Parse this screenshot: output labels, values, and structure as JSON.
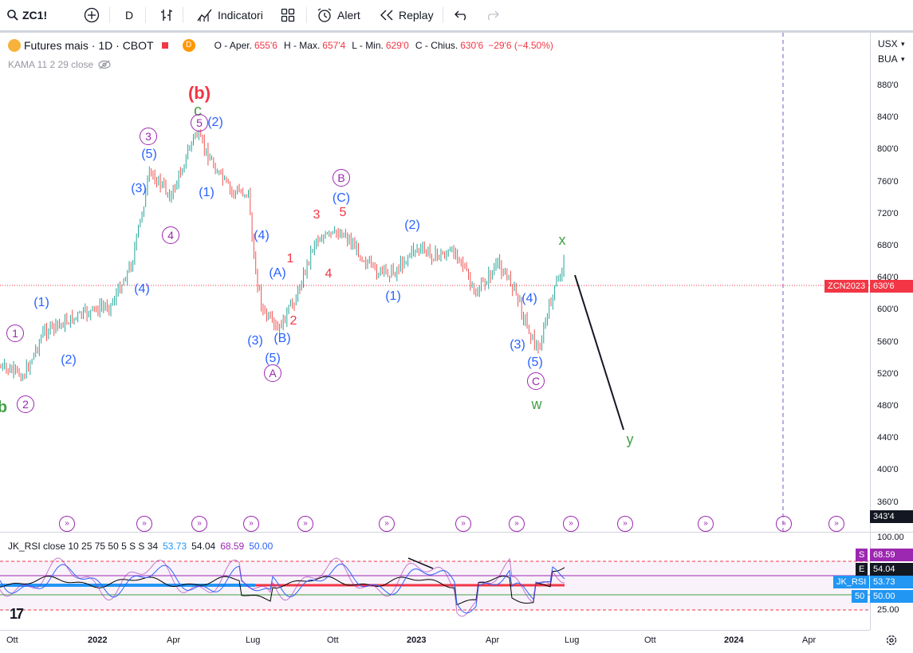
{
  "toolbar": {
    "symbol": "ZC1!",
    "interval": "D",
    "indicators_label": "Indicatori",
    "alert_label": "Alert",
    "replay_label": "Replay"
  },
  "legend": {
    "title": "Futures mais · 1D · CBOT",
    "badge": "D",
    "open_label": "O - Aper.",
    "open": "655'6",
    "high_label": "H - Max.",
    "high": "657'4",
    "low_label": "L - Min.",
    "low": "629'0",
    "close_label": "C - Chius.",
    "close": "630'6",
    "change": "−29'6 (−4.50%)"
  },
  "indicator": {
    "kama": "KAMA 11 2 29 close"
  },
  "rsi_legend": {
    "name": "JK_RSI close 10 25 75 50 5 S S 34",
    "v1": "53.73",
    "v2": "54.04",
    "v3": "68.59",
    "v4": "50.00"
  },
  "axis": {
    "currency": "USX",
    "unit": "BUA",
    "price_ticks": [
      "880'0",
      "840'0",
      "800'0",
      "760'0",
      "720'0",
      "680'0",
      "640'0",
      "600'0",
      "560'0",
      "520'0",
      "480'0",
      "440'0",
      "400'0",
      "360'0"
    ],
    "rsi_ticks": [
      "100.00",
      "25.00"
    ],
    "time_ticks": [
      "Ott",
      "2022",
      "Apr",
      "Lug",
      "Ott",
      "2023",
      "Apr",
      "Lug",
      "Ott",
      "2024",
      "Apr"
    ]
  },
  "tags": {
    "symbol_tag": "ZCN2023",
    "last_price": "630'6",
    "countdown": "343'4",
    "s_label": "S",
    "s_val": "68.59",
    "e_label": "E",
    "e_val": "54.04",
    "jk_label": "JK_RSI",
    "jk_val": "53.73",
    "fifty_label": "50",
    "fifty_val": "50.00"
  },
  "waves": {
    "b_big": "(b)",
    "c_green": "c",
    "w1": "(1)",
    "w2": "(2)",
    "w3": "(3)",
    "w4": "(4)",
    "w5": "(5)",
    "c1": "1",
    "c2": "2",
    "c3": "3",
    "c4": "4",
    "c5": "5",
    "cA": "A",
    "cB": "B",
    "cC": "C",
    "pA": "(A)",
    "pB": "(B)",
    "pC": "(C)",
    "r1": "1",
    "r2": "2",
    "r3": "3",
    "r4": "4",
    "r5": "5",
    "x": "x",
    "w": "w",
    "y": "y",
    "b_small": "b"
  },
  "colors": {
    "blue": "#2962ff",
    "red": "#f23645",
    "purple": "#9c27b0",
    "green": "#43a047",
    "up": "#26a69a",
    "down": "#ef5350"
  }
}
